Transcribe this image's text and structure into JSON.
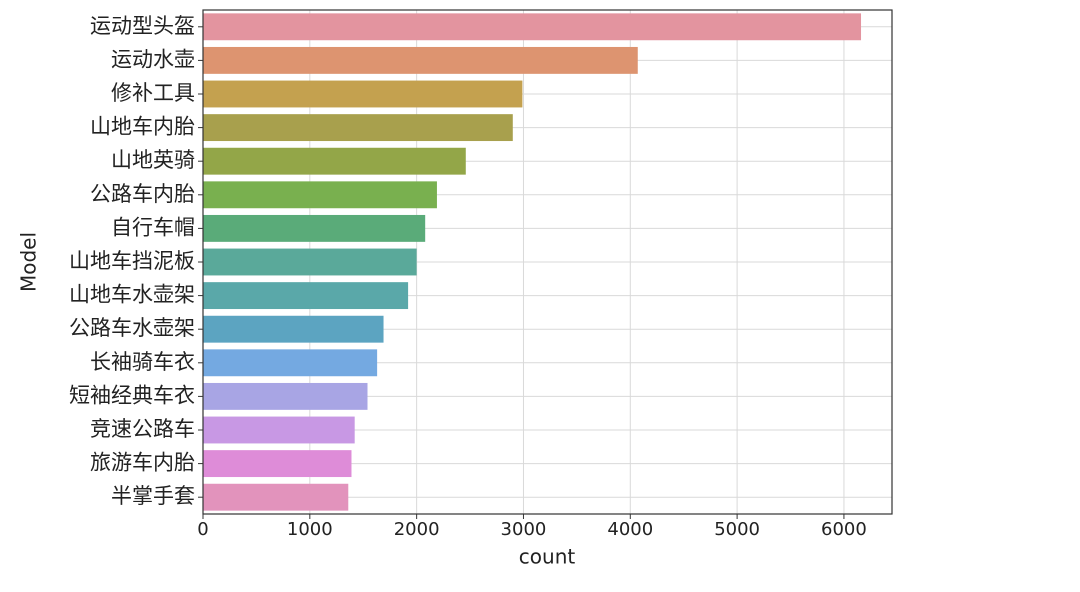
{
  "chart_data": {
    "type": "barh",
    "xlabel": "count",
    "ylabel": "Model",
    "categories": [
      "运动型头盔",
      "运动水壶",
      "修补工具",
      "山地车内胎",
      "山地英骑",
      "公路车内胎",
      "自行车帽",
      "山地车挡泥板",
      "山地车水壶架",
      "公路车水壶架",
      "长袖骑车衣",
      "短袖经典车衣",
      "竞速公路车",
      "旅游车内胎",
      "半掌手套"
    ],
    "values": [
      6160,
      4070,
      2990,
      2900,
      2460,
      2190,
      2080,
      2000,
      1920,
      1690,
      1630,
      1540,
      1420,
      1390,
      1360
    ],
    "colors": [
      "#e3949f",
      "#dd9470",
      "#c4a14f",
      "#a8a04d",
      "#93a648",
      "#79b04f",
      "#5aab79",
      "#5aa99a",
      "#5aa8a9",
      "#5ca4c1",
      "#74a9e1",
      "#a8a5e4",
      "#c898e4",
      "#de8cd8",
      "#e293bc"
    ],
    "xlim": [
      0,
      6450
    ],
    "xticks": [
      0,
      1000,
      2000,
      3000,
      4000,
      5000,
      6000
    ],
    "grid": true
  }
}
